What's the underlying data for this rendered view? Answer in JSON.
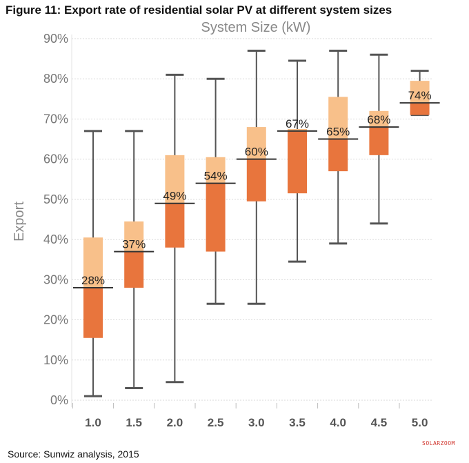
{
  "figure": {
    "title": "Figure 11: Export rate of residential solar PV at different system sizes",
    "source": "Source: Sunwiz analysis, 2015",
    "watermark": "SOLARZOOM"
  },
  "colors": {
    "upper_box": "#f8c08a",
    "lower_box": "#e8753d",
    "whisker": "#555555",
    "median_line": "#333333",
    "grid": "#d9d9d9"
  },
  "chart_data": {
    "type": "boxplot",
    "title": "System Size (kW)",
    "xlabel": "System Size (kW)",
    "ylabel": "Export",
    "ylim": [
      0,
      90
    ],
    "yticks": [
      "0%",
      "10%",
      "20%",
      "30%",
      "40%",
      "50%",
      "60%",
      "70%",
      "80%",
      "90%"
    ],
    "grid": true,
    "categories": [
      "1.0",
      "1.5",
      "2.0",
      "2.5",
      "3.0",
      "3.5",
      "4.0",
      "4.5",
      "5.0"
    ],
    "boxes": [
      {
        "category": "1.0",
        "min": 1,
        "q1": 15.5,
        "median": 28,
        "q3": 40.5,
        "max": 67,
        "label": "28%"
      },
      {
        "category": "1.5",
        "min": 3,
        "q1": 28,
        "median": 37,
        "q3": 44.5,
        "max": 67,
        "label": "37%"
      },
      {
        "category": "2.0",
        "min": 4.5,
        "q1": 38,
        "median": 49,
        "q3": 61,
        "max": 81,
        "label": "49%"
      },
      {
        "category": "2.5",
        "min": 24,
        "q1": 37,
        "median": 54,
        "q3": 60.5,
        "max": 80,
        "label": "54%"
      },
      {
        "category": "3.0",
        "min": 24,
        "q1": 49.5,
        "median": 60,
        "q3": 68,
        "max": 87,
        "label": "60%"
      },
      {
        "category": "3.5",
        "min": 34.5,
        "q1": 51.5,
        "median": 67,
        "q3": 67.5,
        "max": 84.5,
        "label": "67%"
      },
      {
        "category": "4.0",
        "min": 39,
        "q1": 57,
        "median": 65,
        "q3": 75.5,
        "max": 87,
        "label": "65%"
      },
      {
        "category": "4.5",
        "min": 44,
        "q1": 61,
        "median": 68,
        "q3": 72,
        "max": 86,
        "label": "68%"
      },
      {
        "category": "5.0",
        "min": 71,
        "q1": 71,
        "median": 74,
        "q3": 79.5,
        "max": 82,
        "label": "74%"
      }
    ]
  }
}
